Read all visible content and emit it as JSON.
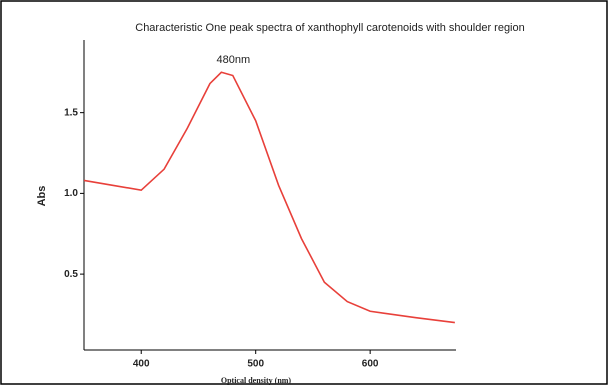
{
  "chart_data": {
    "type": "line",
    "title": "Characteristic One peak spectra of xanthophyll carotenoids with shoulder region",
    "x_label": "Optical density (nm)",
    "y_label": "Abs",
    "annotation": "480nm",
    "x": [
      350,
      375,
      400,
      420,
      440,
      460,
      470,
      480,
      500,
      520,
      540,
      560,
      580,
      600,
      640,
      674
    ],
    "series": [
      {
        "color": "#e8403a",
        "values": [
          1.08,
          1.05,
          1.02,
          1.15,
          1.4,
          1.68,
          1.75,
          1.73,
          1.45,
          1.05,
          0.72,
          0.45,
          0.33,
          0.27,
          0.23,
          0.2
        ]
      }
    ],
    "xlim": [
      350,
      675
    ],
    "xticks": [
      400,
      500,
      600
    ],
    "ylim": [
      0.03,
      1.95
    ],
    "yticks": [
      {
        "value": 0.5,
        "label": "0.5"
      },
      {
        "value": 1.0,
        "label": "1.0"
      },
      {
        "value": 1.5,
        "label": "1.5"
      }
    ]
  }
}
